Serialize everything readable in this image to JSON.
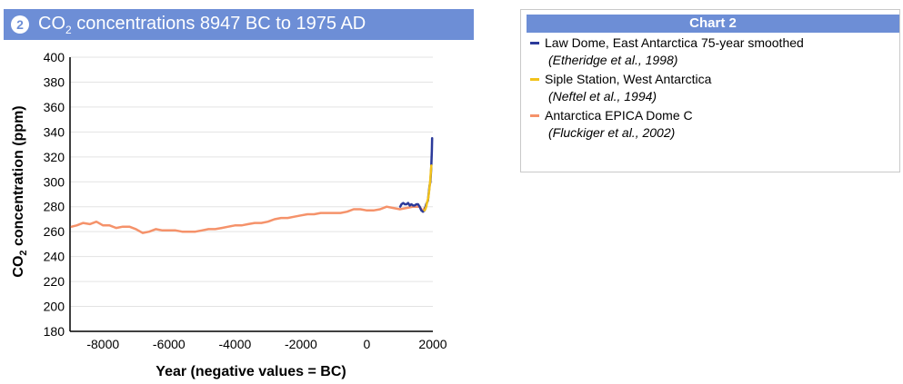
{
  "header": {
    "badge": "2",
    "title_pre": "CO",
    "title_sub": "2",
    "title_post": " concentrations 8947 BC to 1975 AD"
  },
  "legend": {
    "title": "Chart 2",
    "items": [
      {
        "name": "Law Dome, East Antarctica 75-year smoothed",
        "citation": "(Etheridge et al., 1998)",
        "color": "#2b3a9a"
      },
      {
        "name": "Siple Station, West Antarctica",
        "citation": "(Neftel et al., 1994)",
        "color": "#f2c21a"
      },
      {
        "name": "Antarctica EPICA Dome C",
        "citation": "(Fluckiger et al., 2002)",
        "color": "#f5926a"
      }
    ]
  },
  "chart_data": {
    "type": "line",
    "title": "CO2 concentrations 8947 BC to 1975 AD",
    "xlabel": "Year (negative values = BC)",
    "ylabel_pre": "CO",
    "ylabel_sub": "2",
    "ylabel_post": " concentration (ppm)",
    "xlim": [
      -9000,
      2000
    ],
    "ylim": [
      180,
      400
    ],
    "xticks": [
      -8000,
      -6000,
      -4000,
      -2000,
      0,
      2000
    ],
    "yticks": [
      180,
      200,
      220,
      240,
      260,
      280,
      300,
      320,
      340,
      360,
      380,
      400
    ],
    "grid": "horizontal",
    "series": [
      {
        "name": "Antarctica EPICA Dome C",
        "color": "#f5926a",
        "x": [
          -8950,
          -8800,
          -8600,
          -8400,
          -8200,
          -8000,
          -7800,
          -7600,
          -7400,
          -7200,
          -7000,
          -6800,
          -6600,
          -6400,
          -6200,
          -6000,
          -5800,
          -5600,
          -5400,
          -5200,
          -5000,
          -4800,
          -4600,
          -4400,
          -4200,
          -4000,
          -3800,
          -3600,
          -3400,
          -3200,
          -3000,
          -2800,
          -2600,
          -2400,
          -2200,
          -2000,
          -1800,
          -1600,
          -1400,
          -1200,
          -1000,
          -800,
          -600,
          -400,
          -200,
          0,
          200,
          400,
          600,
          800,
          1000,
          1200,
          1400,
          1600,
          1700,
          1750
        ],
        "y": [
          264,
          265,
          267,
          266,
          268,
          265,
          265,
          263,
          264,
          264,
          262,
          259,
          260,
          262,
          261,
          261,
          261,
          260,
          260,
          260,
          261,
          262,
          262,
          263,
          264,
          265,
          265,
          266,
          267,
          267,
          268,
          270,
          271,
          271,
          272,
          273,
          274,
          274,
          275,
          275,
          275,
          275,
          276,
          278,
          278,
          277,
          277,
          278,
          280,
          279,
          278,
          279,
          280,
          280,
          276,
          279
        ]
      },
      {
        "name": "Law Dome, East Antarctica 75-year smoothed",
        "color": "#2b3a9a",
        "x": [
          1010,
          1050,
          1100,
          1150,
          1200,
          1250,
          1300,
          1350,
          1400,
          1450,
          1500,
          1550,
          1600,
          1650,
          1700,
          1750,
          1800,
          1850,
          1900,
          1925,
          1950,
          1960,
          1970,
          1978
        ],
        "y": [
          280,
          282,
          283,
          282,
          282,
          283,
          281,
          282,
          281,
          281,
          282,
          282,
          280,
          277,
          276,
          277,
          282,
          285,
          297,
          300,
          311,
          317,
          325,
          335
        ]
      },
      {
        "name": "Siple Station, West Antarctica",
        "color": "#f2c21a",
        "x": [
          1744,
          1770,
          1800,
          1820,
          1850,
          1870,
          1890,
          1900,
          1920,
          1935,
          1953
        ],
        "y": [
          277,
          278,
          280,
          283,
          286,
          289,
          293,
          296,
          301,
          306,
          313
        ]
      }
    ]
  }
}
